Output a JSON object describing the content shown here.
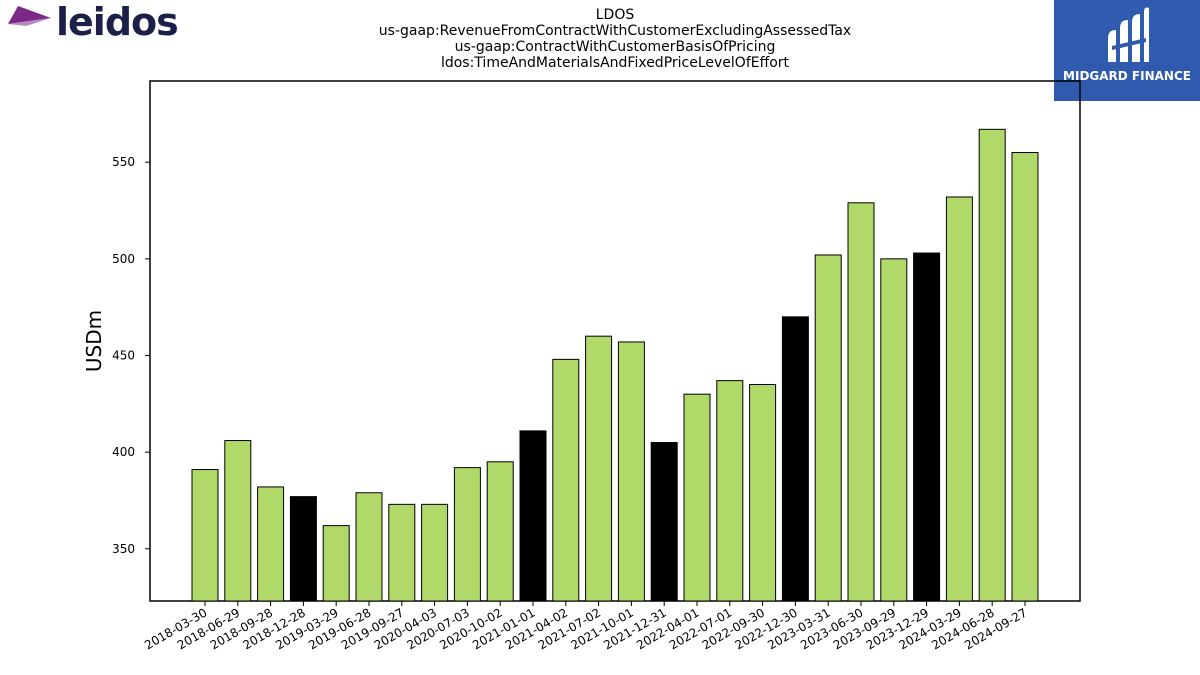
{
  "header": {
    "title_lines": [
      "LDOS",
      "us-gaap:RevenueFromContractWithCustomerExcludingAssessedTax",
      "us-gaap:ContractWithCustomerBasisOfPricing",
      "ldos:TimeAndMaterialsAndFixedPriceLevelOfEffort"
    ]
  },
  "logos": {
    "left_wordmark": "leidos",
    "right_brand": "MIDGARD FINANCE"
  },
  "colors": {
    "bar_default": "#b0d96a",
    "bar_highlight": "#000000",
    "logo_left_text": "#1c1f4a",
    "logo_left_purple": "#7a2a86",
    "logo_right_bg": "#2f5aad"
  },
  "chart_data": {
    "type": "bar",
    "ylabel": "USDm",
    "xlabel": "",
    "ylim": [
      323,
      592
    ],
    "yticks": [
      350,
      400,
      450,
      500,
      550
    ],
    "grid": false,
    "categories": [
      "2018-03-30",
      "2018-06-29",
      "2018-09-28",
      "2018-12-28",
      "2019-03-29",
      "2019-06-28",
      "2019-09-27",
      "2020-04-03",
      "2020-07-03",
      "2020-10-02",
      "2021-01-01",
      "2021-04-02",
      "2021-07-02",
      "2021-10-01",
      "2021-12-31",
      "2022-04-01",
      "2022-07-01",
      "2022-09-30",
      "2022-12-30",
      "2023-03-31",
      "2023-06-30",
      "2023-09-29",
      "2023-12-29",
      "2024-03-29",
      "2024-06-28",
      "2024-09-27"
    ],
    "values": [
      391,
      406,
      382,
      377,
      362,
      379,
      373,
      373,
      392,
      395,
      411,
      448,
      460,
      457,
      405,
      430,
      437,
      435,
      470,
      502,
      529,
      500,
      503,
      532,
      567,
      555
    ],
    "highlighted": [
      false,
      false,
      false,
      true,
      false,
      false,
      false,
      false,
      false,
      false,
      true,
      false,
      false,
      false,
      true,
      false,
      false,
      false,
      true,
      false,
      false,
      false,
      true,
      false,
      false,
      false
    ]
  }
}
